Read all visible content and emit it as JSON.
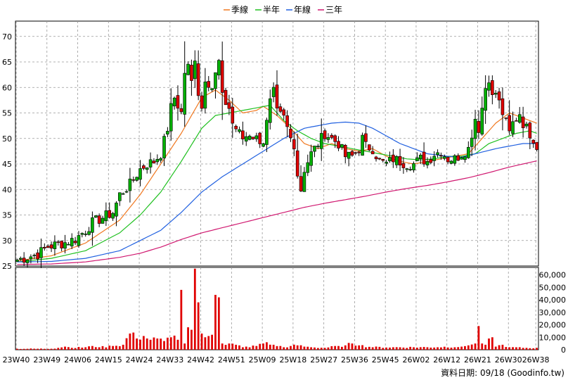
{
  "chart_data": {
    "type": "candlestick",
    "legend": {
      "placement": "top-center",
      "entries": [
        {
          "label": "季線",
          "color": "#f07820"
        },
        {
          "label": "半年",
          "color": "#20c020"
        },
        {
          "label": "年線",
          "color": "#2060e0"
        },
        {
          "label": "三年",
          "color": "#d01870"
        }
      ]
    },
    "price_axis": {
      "range": [
        25,
        73
      ],
      "ticks": [
        25,
        30,
        35,
        40,
        45,
        50,
        55,
        60,
        65,
        70
      ],
      "grid": true
    },
    "volume_axis": {
      "range": [
        0,
        66000
      ],
      "ticks": [
        0,
        10000,
        20000,
        30000,
        40000,
        50000,
        60000
      ],
      "tick_labels": [
        "0",
        "10,000",
        "20,000",
        "30,000",
        "40,000",
        "50,000",
        "60,000"
      ]
    },
    "x_axis": {
      "labels": [
        "23W40",
        "23W49",
        "24W06",
        "24W15",
        "24W24",
        "24W33",
        "24W42",
        "24W51",
        "25W09",
        "25W18",
        "25W27",
        "25W36",
        "25W45",
        "26W02",
        "26W12",
        "26W21",
        "26W30",
        "26W38"
      ],
      "label_positions": [
        0,
        9,
        18,
        27,
        36,
        45,
        54,
        63,
        72,
        81,
        90,
        99,
        108,
        117,
        126,
        135,
        144,
        152
      ],
      "n_weeks": 153
    },
    "credit": "資料日期: 09/18 (Goodinfo.tw)",
    "up_color": "#00b000",
    "down_color": "#e00000",
    "volume_color": "#e00000",
    "price_anchors": [
      [
        0,
        26.2
      ],
      [
        6,
        27.3
      ],
      [
        9,
        28.8
      ],
      [
        14,
        29.6
      ],
      [
        17,
        30.3
      ],
      [
        20,
        32
      ],
      [
        22,
        33.5
      ],
      [
        25,
        34.5
      ],
      [
        28,
        35.5
      ],
      [
        30,
        39
      ],
      [
        33,
        41
      ],
      [
        36,
        44
      ],
      [
        38,
        45
      ],
      [
        40,
        45.5
      ],
      [
        42,
        47
      ],
      [
        44,
        52
      ],
      [
        45,
        56
      ],
      [
        46,
        58
      ],
      [
        48,
        55
      ],
      [
        49,
        63
      ],
      [
        50,
        64
      ],
      [
        51,
        61
      ],
      [
        52,
        66
      ],
      [
        53,
        59
      ],
      [
        54,
        56
      ],
      [
        55,
        62
      ],
      [
        57,
        60
      ],
      [
        59,
        65
      ],
      [
        60,
        58
      ],
      [
        62,
        56
      ],
      [
        63,
        53
      ],
      [
        64,
        52
      ],
      [
        66,
        50
      ],
      [
        68,
        51
      ],
      [
        70,
        50
      ],
      [
        72,
        49.5
      ],
      [
        73,
        53
      ],
      [
        74,
        57
      ],
      [
        75,
        59
      ],
      [
        76,
        55
      ],
      [
        78,
        54
      ],
      [
        80,
        50
      ],
      [
        81,
        49
      ],
      [
        82,
        43
      ],
      [
        83,
        40
      ],
      [
        84,
        44
      ],
      [
        86,
        47
      ],
      [
        88,
        49
      ],
      [
        90,
        51
      ],
      [
        92,
        50
      ],
      [
        94,
        49
      ],
      [
        96,
        46.5
      ],
      [
        98,
        46.5
      ],
      [
        100,
        48
      ],
      [
        101,
        50
      ],
      [
        102,
        48.5
      ],
      [
        104,
        48
      ],
      [
        106,
        45.5
      ],
      [
        108,
        45
      ],
      [
        110,
        46
      ],
      [
        112,
        45.5
      ],
      [
        114,
        45
      ],
      [
        116,
        45
      ],
      [
        118,
        46
      ],
      [
        120,
        45.5
      ],
      [
        122,
        47
      ],
      [
        124,
        47.5
      ],
      [
        126,
        46
      ],
      [
        128,
        46
      ],
      [
        130,
        47
      ],
      [
        132,
        48
      ],
      [
        133,
        51
      ],
      [
        134,
        54
      ],
      [
        135,
        52
      ],
      [
        136,
        56
      ],
      [
        137,
        60
      ],
      [
        138,
        62
      ],
      [
        139,
        58
      ],
      [
        140,
        59
      ],
      [
        141,
        57
      ],
      [
        142,
        55
      ],
      [
        143,
        53
      ],
      [
        144,
        51
      ],
      [
        145,
        53
      ],
      [
        146,
        54
      ],
      [
        147,
        55
      ],
      [
        148,
        53
      ],
      [
        149,
        52
      ],
      [
        150,
        51
      ],
      [
        151,
        50
      ],
      [
        152,
        48.5
      ]
    ],
    "volume_anchors": [
      [
        0,
        800
      ],
      [
        10,
        800
      ],
      [
        12,
        1500
      ],
      [
        14,
        2500
      ],
      [
        16,
        1500
      ],
      [
        20,
        2000
      ],
      [
        22,
        3000
      ],
      [
        24,
        2000
      ],
      [
        28,
        3000
      ],
      [
        31,
        4000
      ],
      [
        33,
        13000
      ],
      [
        35,
        9000
      ],
      [
        37,
        11000
      ],
      [
        39,
        8000
      ],
      [
        41,
        9000
      ],
      [
        43,
        7000
      ],
      [
        45,
        10000
      ],
      [
        47,
        8000
      ],
      [
        48,
        48000
      ],
      [
        49,
        5000
      ],
      [
        50,
        18000
      ],
      [
        51,
        16000
      ],
      [
        52,
        65000
      ],
      [
        53,
        38000
      ],
      [
        54,
        13000
      ],
      [
        55,
        10000
      ],
      [
        56,
        11000
      ],
      [
        57,
        12000
      ],
      [
        58,
        44000
      ],
      [
        59,
        42000
      ],
      [
        60,
        5000
      ],
      [
        62,
        5000
      ],
      [
        64,
        4000
      ],
      [
        66,
        2000
      ],
      [
        70,
        3000
      ],
      [
        72,
        5000
      ],
      [
        73,
        6000
      ],
      [
        75,
        4000
      ],
      [
        78,
        2000
      ],
      [
        80,
        3000
      ],
      [
        82,
        3500
      ],
      [
        84,
        2500
      ],
      [
        86,
        2000
      ],
      [
        90,
        1500
      ],
      [
        94,
        3000
      ],
      [
        96,
        3500
      ],
      [
        98,
        5000
      ],
      [
        100,
        3500
      ],
      [
        104,
        2000
      ],
      [
        110,
        2000
      ],
      [
        120,
        2000
      ],
      [
        130,
        2500
      ],
      [
        132,
        3500
      ],
      [
        134,
        5000
      ],
      [
        135,
        19000
      ],
      [
        136,
        5000
      ],
      [
        137,
        4000
      ],
      [
        138,
        9000
      ],
      [
        139,
        10000
      ],
      [
        140,
        2500
      ],
      [
        142,
        4000
      ],
      [
        144,
        2000
      ],
      [
        148,
        1500
      ],
      [
        152,
        1500
      ]
    ],
    "ma_anchors": {
      "季線": [
        [
          0,
          26
        ],
        [
          10,
          27
        ],
        [
          20,
          29.5
        ],
        [
          30,
          34
        ],
        [
          36,
          39
        ],
        [
          42,
          45
        ],
        [
          48,
          51
        ],
        [
          54,
          58
        ],
        [
          58,
          59.5
        ],
        [
          62,
          57.5
        ],
        [
          66,
          55
        ],
        [
          70,
          55.5
        ],
        [
          72,
          56.3
        ],
        [
          76,
          54.5
        ],
        [
          80,
          52
        ],
        [
          84,
          49
        ],
        [
          88,
          48
        ],
        [
          92,
          49
        ],
        [
          96,
          48
        ],
        [
          100,
          47.5
        ],
        [
          104,
          48
        ],
        [
          108,
          46.5
        ],
        [
          112,
          45.5
        ],
        [
          116,
          45
        ],
        [
          120,
          45.5
        ],
        [
          124,
          46
        ],
        [
          128,
          46.5
        ],
        [
          132,
          47
        ],
        [
          136,
          50
        ],
        [
          140,
          53
        ],
        [
          144,
          55
        ],
        [
          148,
          54
        ],
        [
          152,
          53
        ]
      ],
      "半年": [
        [
          0,
          25.8
        ],
        [
          10,
          26.5
        ],
        [
          20,
          28
        ],
        [
          30,
          31.5
        ],
        [
          36,
          35
        ],
        [
          42,
          39.5
        ],
        [
          48,
          45.5
        ],
        [
          54,
          52
        ],
        [
          58,
          54.5
        ],
        [
          62,
          55
        ],
        [
          66,
          55.5
        ],
        [
          70,
          56
        ],
        [
          74,
          56.5
        ],
        [
          78,
          53.5
        ],
        [
          82,
          51.5
        ],
        [
          86,
          50
        ],
        [
          90,
          49
        ],
        [
          94,
          48.5
        ],
        [
          98,
          48
        ],
        [
          102,
          47.5
        ],
        [
          106,
          47
        ],
        [
          110,
          46.5
        ],
        [
          114,
          46
        ],
        [
          118,
          45.8
        ],
        [
          122,
          46
        ],
        [
          126,
          46.5
        ],
        [
          130,
          46.5
        ],
        [
          134,
          47
        ],
        [
          138,
          49
        ],
        [
          142,
          50
        ],
        [
          146,
          51
        ],
        [
          150,
          51.5
        ],
        [
          152,
          51
        ]
      ],
      "年線": [
        [
          0,
          25.8
        ],
        [
          10,
          25.9
        ],
        [
          20,
          26.5
        ],
        [
          30,
          28
        ],
        [
          36,
          30
        ],
        [
          42,
          32
        ],
        [
          48,
          35.5
        ],
        [
          54,
          39.5
        ],
        [
          60,
          42.5
        ],
        [
          66,
          45
        ],
        [
          72,
          47.5
        ],
        [
          78,
          50
        ],
        [
          84,
          52
        ],
        [
          88,
          52.5
        ],
        [
          92,
          53
        ],
        [
          96,
          53.2
        ],
        [
          100,
          53
        ],
        [
          104,
          52
        ],
        [
          108,
          50.5
        ],
        [
          112,
          49
        ],
        [
          116,
          48
        ],
        [
          120,
          47
        ],
        [
          126,
          46.5
        ],
        [
          130,
          46.3
        ],
        [
          134,
          47
        ],
        [
          140,
          48
        ],
        [
          144,
          48.5
        ],
        [
          148,
          49
        ],
        [
          152,
          49
        ]
      ],
      "三年": [
        [
          0,
          25.3
        ],
        [
          10,
          25.4
        ],
        [
          20,
          25.8
        ],
        [
          30,
          26.7
        ],
        [
          36,
          27.5
        ],
        [
          42,
          28.7
        ],
        [
          48,
          30.2
        ],
        [
          54,
          31.5
        ],
        [
          60,
          32.5
        ],
        [
          66,
          33.5
        ],
        [
          72,
          34.5
        ],
        [
          78,
          35.5
        ],
        [
          84,
          36.5
        ],
        [
          90,
          37.3
        ],
        [
          96,
          38
        ],
        [
          102,
          38.7
        ],
        [
          108,
          39.5
        ],
        [
          114,
          40.2
        ],
        [
          120,
          40.8
        ],
        [
          126,
          41.5
        ],
        [
          132,
          42.3
        ],
        [
          138,
          43.3
        ],
        [
          144,
          44.4
        ],
        [
          148,
          45
        ],
        [
          152,
          45.6
        ]
      ]
    }
  }
}
